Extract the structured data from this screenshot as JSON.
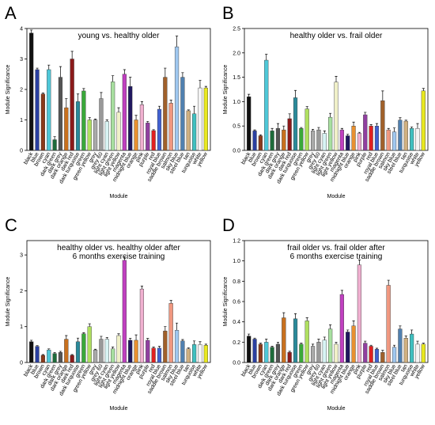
{
  "chart_data": [
    {
      "type": "bar",
      "panel": "A",
      "title": [
        "young vs. healthy older"
      ],
      "y_label": "Module Significance",
      "x_label": "Module",
      "categories": [
        "black",
        "blue",
        "brown",
        "cyan",
        "dark green",
        "dark grey",
        "dark orange",
        "dark red",
        "dark turquoise",
        "green",
        "green yellow",
        "grey",
        "grey 60",
        "light cyan",
        "light green",
        "light yellow",
        "magenta",
        "midnight blue",
        "orange",
        "pink",
        "purple",
        "red",
        "royal blue",
        "saddle brown",
        "salmon",
        "sky blue",
        "steel blue",
        "tan",
        "turquoise",
        "white",
        "yellow"
      ],
      "colors": [
        "#111111",
        "#2a3fa0",
        "#8b3a1a",
        "#4fc8d8",
        "#1e6b3a",
        "#555555",
        "#c8701e",
        "#8b1a1a",
        "#2a8a9a",
        "#3aa83a",
        "#b0e060",
        "#aaaaaa",
        "#999999",
        "#d8f4f4",
        "#a8e0a0",
        "#f0f0c8",
        "#c040c0",
        "#201860",
        "#e89030",
        "#f0b0d0",
        "#9040a0",
        "#e02020",
        "#4060d0",
        "#a0602a",
        "#f09880",
        "#a0c8f0",
        "#5080b0",
        "#d0b080",
        "#40c0c0",
        "#f4f4f4",
        "#e8e820"
      ],
      "values": [
        3.85,
        2.65,
        1.85,
        2.65,
        0.35,
        2.4,
        1.4,
        3.0,
        1.6,
        1.95,
        1.0,
        1.0,
        1.7,
        0.95,
        2.25,
        1.25,
        2.5,
        2.1,
        1.0,
        1.5,
        0.9,
        0.65,
        1.35,
        2.4,
        1.55,
        3.4,
        2.4,
        1.3,
        1.2,
        2.05,
        2.05
      ],
      "errors": [
        0.1,
        0.05,
        0.03,
        0.15,
        0.1,
        0.35,
        0.3,
        0.25,
        0.25,
        0.08,
        0.08,
        0.03,
        0.2,
        0.05,
        0.2,
        0.15,
        0.15,
        0.3,
        0.15,
        0.1,
        0.05,
        0.03,
        0.1,
        0.3,
        0.1,
        0.35,
        0.15,
        0.03,
        0.25,
        0.25,
        0.05
      ],
      "ylim": [
        0,
        4
      ],
      "yticks": [
        0,
        1,
        2,
        3,
        4
      ]
    },
    {
      "type": "bar",
      "panel": "B",
      "title": [
        "healthy older vs. frail older"
      ],
      "y_label": "Module Significance",
      "x_label": "Module",
      "categories": [
        "black",
        "blue",
        "brown",
        "cyan",
        "dark green",
        "dark grey",
        "dark orange",
        "dark red",
        "dark turquoise",
        "green",
        "green yellow",
        "grey",
        "grey 60",
        "light cyan",
        "light green",
        "light yellow",
        "magenta",
        "midnight blue",
        "orange",
        "pink",
        "purple",
        "red",
        "royal blue",
        "saddle brown",
        "salmon",
        "sky blue",
        "steel blue",
        "tan",
        "turquoise",
        "white",
        "yellow"
      ],
      "colors": [
        "#111111",
        "#2a3fa0",
        "#8b3a1a",
        "#4fc8d8",
        "#1e6b3a",
        "#555555",
        "#c8701e",
        "#8b1a1a",
        "#2a8a9a",
        "#3aa83a",
        "#b0e060",
        "#aaaaaa",
        "#999999",
        "#d8f4f4",
        "#a8e0a0",
        "#f0f0c8",
        "#c040c0",
        "#201860",
        "#e89030",
        "#f0b0d0",
        "#9040a0",
        "#e02020",
        "#4060d0",
        "#a0602a",
        "#f09880",
        "#a0c8f0",
        "#5080b0",
        "#d0b080",
        "#40c0c0",
        "#f4f4f4",
        "#e8e820"
      ],
      "values": [
        1.1,
        0.4,
        0.3,
        1.85,
        0.4,
        0.45,
        0.42,
        0.65,
        1.08,
        0.45,
        0.85,
        0.4,
        0.42,
        0.35,
        0.68,
        1.4,
        0.42,
        0.3,
        0.5,
        0.35,
        0.73,
        0.5,
        0.5,
        1.02,
        0.42,
        0.38,
        0.62,
        0.6,
        0.45,
        0.45,
        1.22
      ],
      "errors": [
        0.05,
        0.02,
        0.02,
        0.12,
        0.05,
        0.1,
        0.08,
        0.1,
        0.15,
        0.02,
        0.05,
        0.03,
        0.05,
        0.05,
        0.08,
        0.12,
        0.03,
        0.03,
        0.08,
        0.02,
        0.05,
        0.03,
        0.05,
        0.2,
        0.03,
        0.08,
        0.05,
        0.02,
        0.03,
        0.1,
        0.05
      ],
      "ylim": [
        0,
        2.5
      ],
      "yticks": [
        {
          "value": 0,
          "label": "0.0"
        },
        0.5,
        {
          "value": 1,
          "label": "1.0"
        },
        1.5,
        {
          "value": 2,
          "label": "2.0"
        },
        2.5
      ]
    },
    {
      "type": "bar",
      "panel": "C",
      "title": [
        "healthy older vs. healthy older after",
        "6 months exercise training"
      ],
      "y_label": "Module Significance",
      "x_label": "Module",
      "categories": [
        "black",
        "blue",
        "brown",
        "cyan",
        "dark green",
        "dark grey",
        "dark orange",
        "dark red",
        "dark turquoise",
        "green",
        "green yellow",
        "grey",
        "grey 60",
        "light cyan",
        "light green",
        "light yellow",
        "magenta",
        "midnight blue",
        "orange",
        "pink",
        "purple",
        "red",
        "royal blue",
        "saddle brown",
        "salmon",
        "sky blue",
        "steel blue",
        "tan",
        "turquoise",
        "white",
        "yellow"
      ],
      "colors": [
        "#111111",
        "#2a3fa0",
        "#8b3a1a",
        "#4fc8d8",
        "#1e6b3a",
        "#555555",
        "#c8701e",
        "#8b1a1a",
        "#2a8a9a",
        "#3aa83a",
        "#b0e060",
        "#aaaaaa",
        "#999999",
        "#d8f4f4",
        "#a8e0a0",
        "#f0f0c8",
        "#c040c0",
        "#201860",
        "#e89030",
        "#f0b0d0",
        "#9040a0",
        "#e02020",
        "#4060d0",
        "#a0602a",
        "#f09880",
        "#a0c8f0",
        "#5080b0",
        "#d0b080",
        "#40c0c0",
        "#f4f4f4",
        "#e8e820"
      ],
      "values": [
        0.58,
        0.45,
        0.2,
        0.35,
        0.25,
        0.28,
        0.65,
        0.2,
        0.58,
        0.8,
        1.0,
        0.35,
        0.65,
        0.65,
        0.38,
        0.75,
        2.85,
        0.62,
        0.62,
        2.05,
        0.62,
        0.4,
        0.4,
        0.88,
        1.65,
        0.9,
        0.6,
        0.38,
        0.5,
        0.5,
        0.48
      ],
      "errors": [
        0.04,
        0.02,
        0.02,
        0.03,
        0.03,
        0.03,
        0.1,
        0.02,
        0.1,
        0.03,
        0.08,
        0.02,
        0.08,
        0.05,
        0.05,
        0.05,
        0.1,
        0.05,
        0.15,
        0.08,
        0.05,
        0.03,
        0.05,
        0.12,
        0.08,
        0.2,
        0.04,
        0.03,
        0.1,
        0.08,
        0.03
      ],
      "ylim": [
        0,
        3.4
      ],
      "yticks": [
        0,
        1,
        2,
        3
      ]
    },
    {
      "type": "bar",
      "panel": "D",
      "title": [
        "frail older vs. frail older after",
        "6 months exercise training"
      ],
      "y_label": "Module Significance",
      "x_label": "Module",
      "categories": [
        "black",
        "blue",
        "brown",
        "cyan",
        "dark green",
        "dark grey",
        "dark orange",
        "dark red",
        "dark turquoise",
        "green",
        "green yellow",
        "grey",
        "grey 60",
        "light cyan",
        "light green",
        "light yellow",
        "magenta",
        "midnight blue",
        "orange",
        "pink",
        "purple",
        "red",
        "royal blue",
        "saddle brown",
        "salmon",
        "sky blue",
        "steel blue",
        "tan",
        "turquoise",
        "white",
        "yellow"
      ],
      "colors": [
        "#111111",
        "#2a3fa0",
        "#8b3a1a",
        "#4fc8d8",
        "#1e6b3a",
        "#555555",
        "#c8701e",
        "#8b1a1a",
        "#2a8a9a",
        "#3aa83a",
        "#b0e060",
        "#aaaaaa",
        "#999999",
        "#d8f4f4",
        "#a8e0a0",
        "#f0f0c8",
        "#c040c0",
        "#201860",
        "#e89030",
        "#f0b0d0",
        "#9040a0",
        "#e02020",
        "#4060d0",
        "#a0602a",
        "#f09880",
        "#a0c8f0",
        "#5080b0",
        "#d0b080",
        "#40c0c0",
        "#f4f4f4",
        "#e8e820"
      ],
      "values": [
        0.26,
        0.23,
        0.18,
        0.2,
        0.15,
        0.18,
        0.44,
        0.1,
        0.43,
        0.18,
        0.41,
        0.16,
        0.2,
        0.22,
        0.33,
        0.18,
        0.67,
        0.3,
        0.36,
        0.96,
        0.19,
        0.16,
        0.13,
        0.1,
        0.76,
        0.15,
        0.33,
        0.24,
        0.28,
        0.18,
        0.18
      ],
      "errors": [
        0.02,
        0.01,
        0.01,
        0.03,
        0.01,
        0.02,
        0.05,
        0.01,
        0.05,
        0.01,
        0.03,
        0.02,
        0.03,
        0.03,
        0.04,
        0.02,
        0.04,
        0.02,
        0.05,
        0.05,
        0.02,
        0.01,
        0.01,
        0.02,
        0.05,
        0.02,
        0.03,
        0.02,
        0.04,
        0.03,
        0.01
      ],
      "ylim": [
        0,
        1.2
      ],
      "yticks": [
        {
          "value": 0,
          "label": "0.0"
        },
        0.2,
        0.4,
        0.6,
        0.8,
        {
          "value": 1,
          "label": "1.0"
        },
        1.2
      ]
    }
  ]
}
